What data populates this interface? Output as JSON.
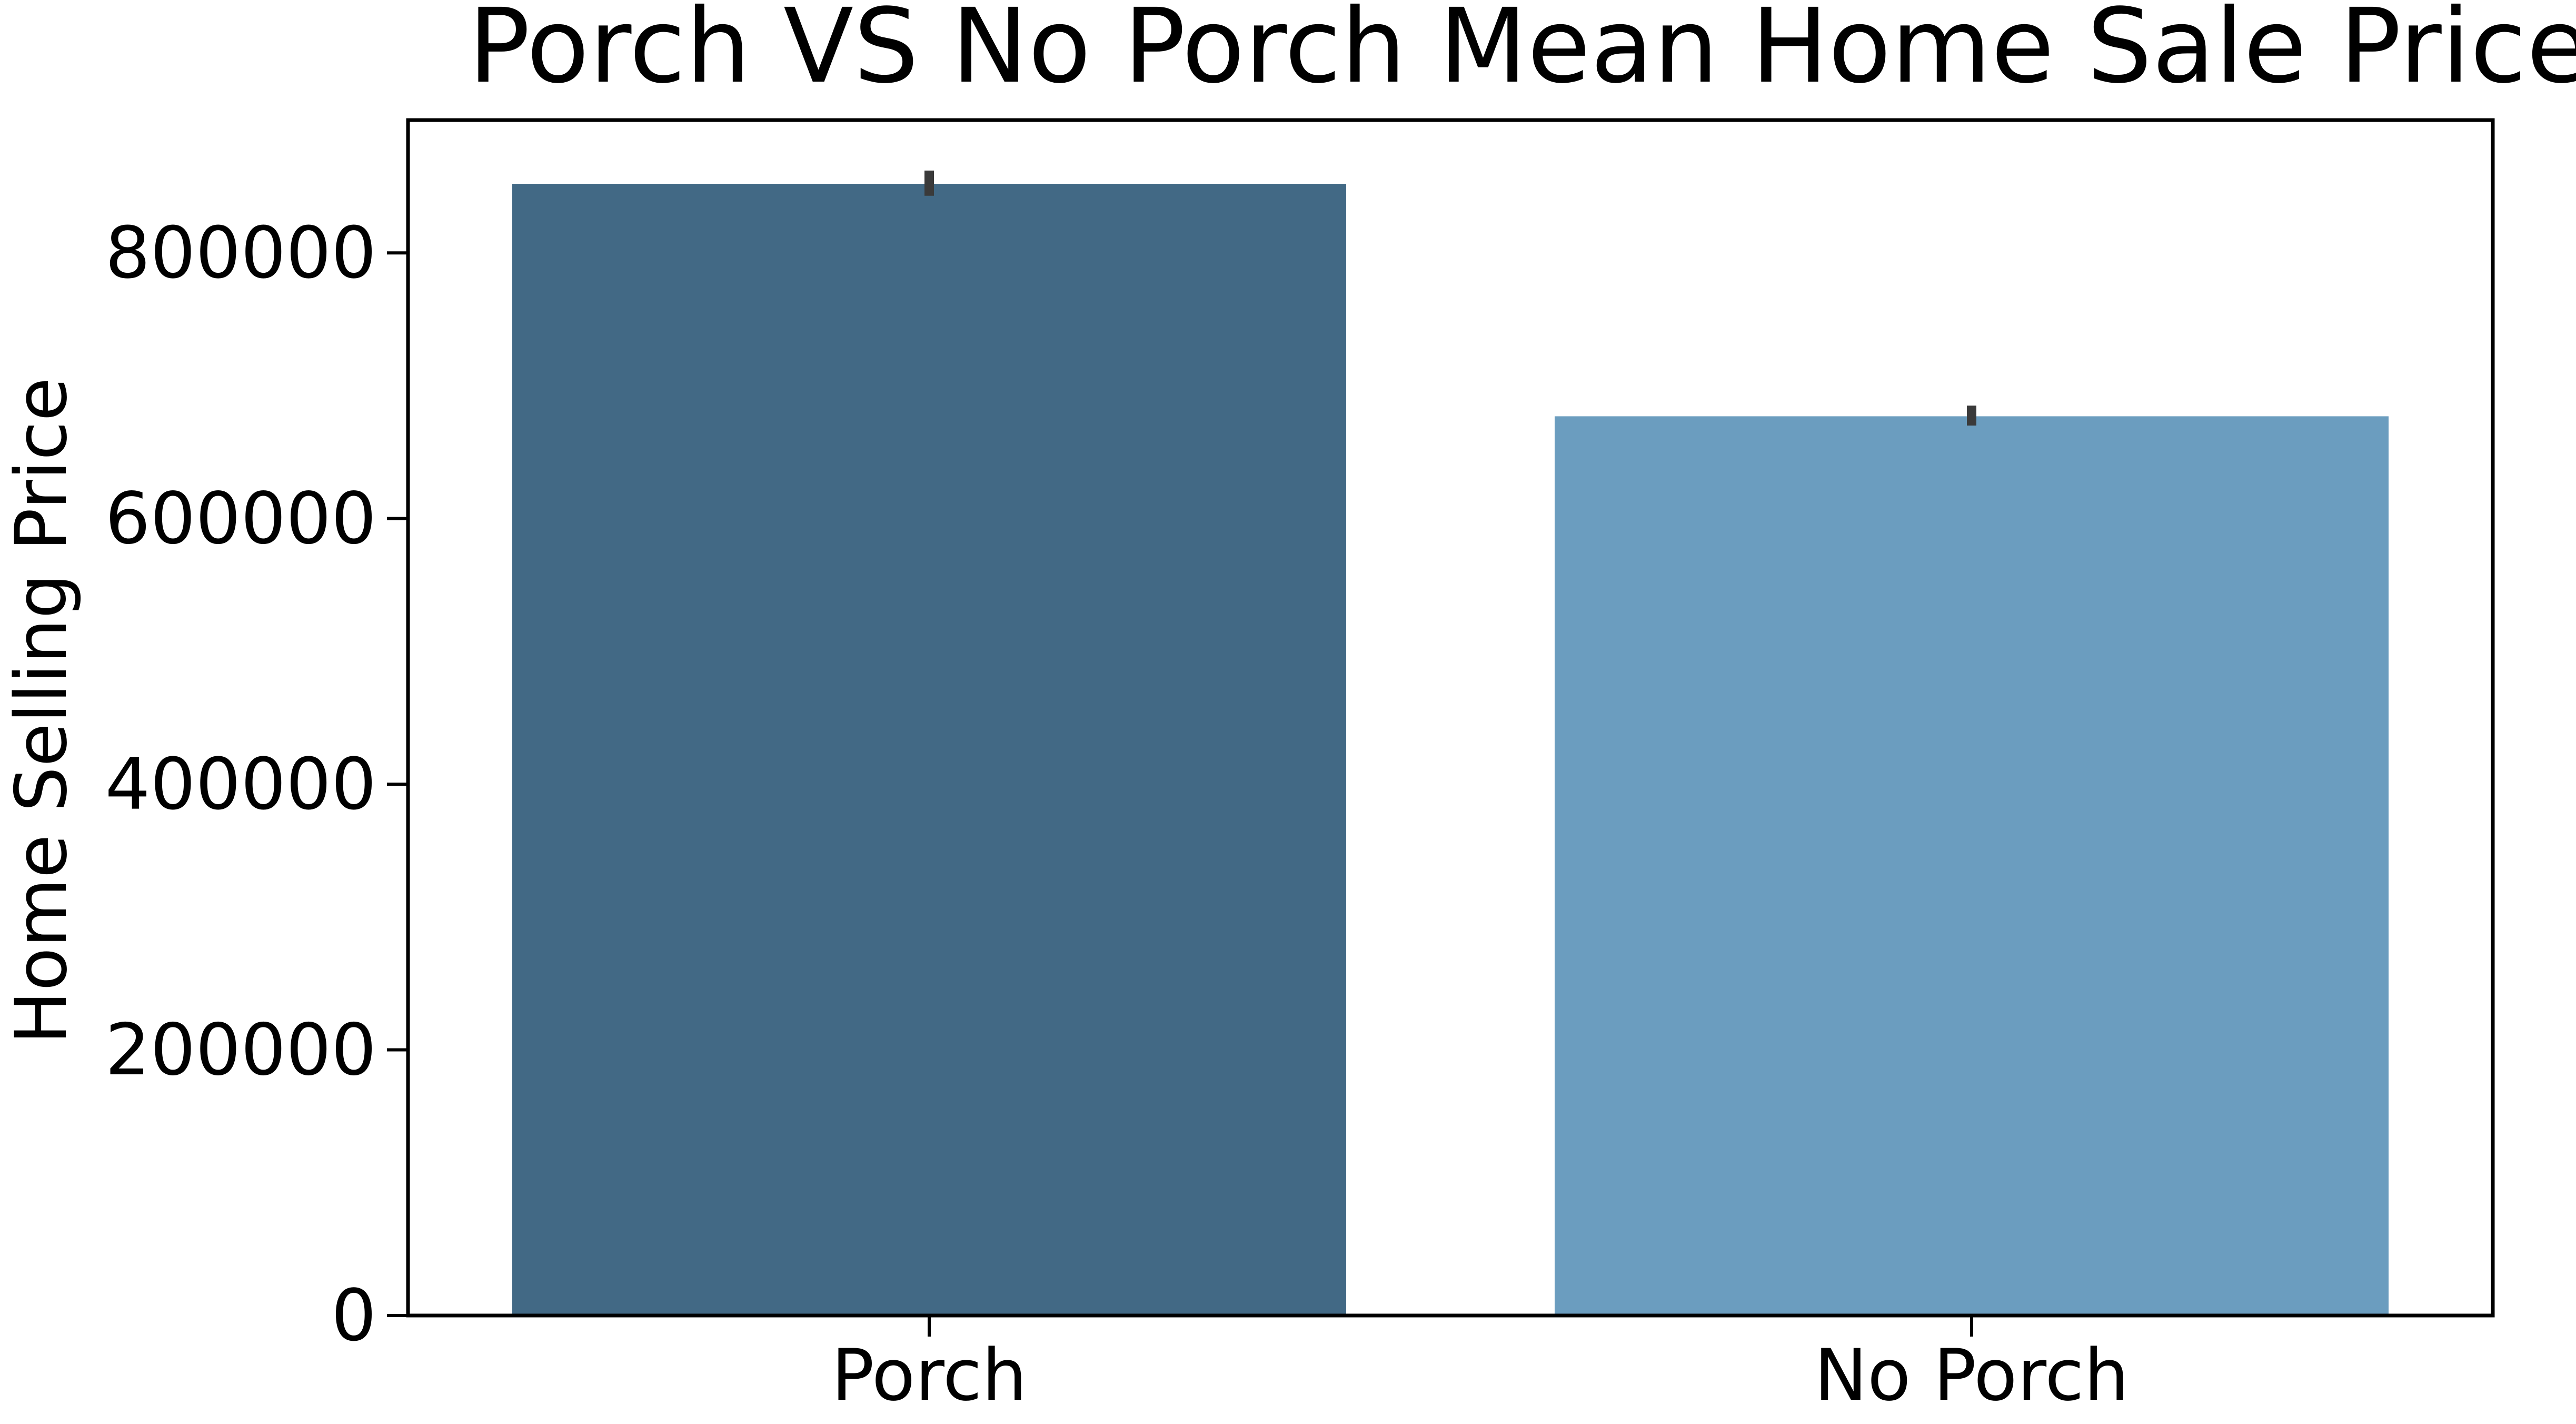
{
  "chart_data": {
    "type": "bar",
    "title": "Porch VS No Porch Mean Home Sale Prices",
    "xlabel": "",
    "ylabel": "Home Selling Price",
    "categories": [
      "Porch",
      "No Porch"
    ],
    "values": [
      852000,
      677000
    ],
    "error_bars": [
      {
        "low": 843000,
        "high": 862000
      },
      {
        "low": 670000,
        "high": 685000
      }
    ],
    "colors": [
      "#426985",
      "#6b9dbf"
    ],
    "error_bar_color": "#3a3a3a",
    "ylim": [
      0,
      900000
    ],
    "yticks": [
      0,
      200000,
      400000,
      600000,
      800000
    ],
    "ytick_labels": [
      "0",
      "200000",
      "400000",
      "600000",
      "800000"
    ],
    "grid": false,
    "legend": false
  }
}
